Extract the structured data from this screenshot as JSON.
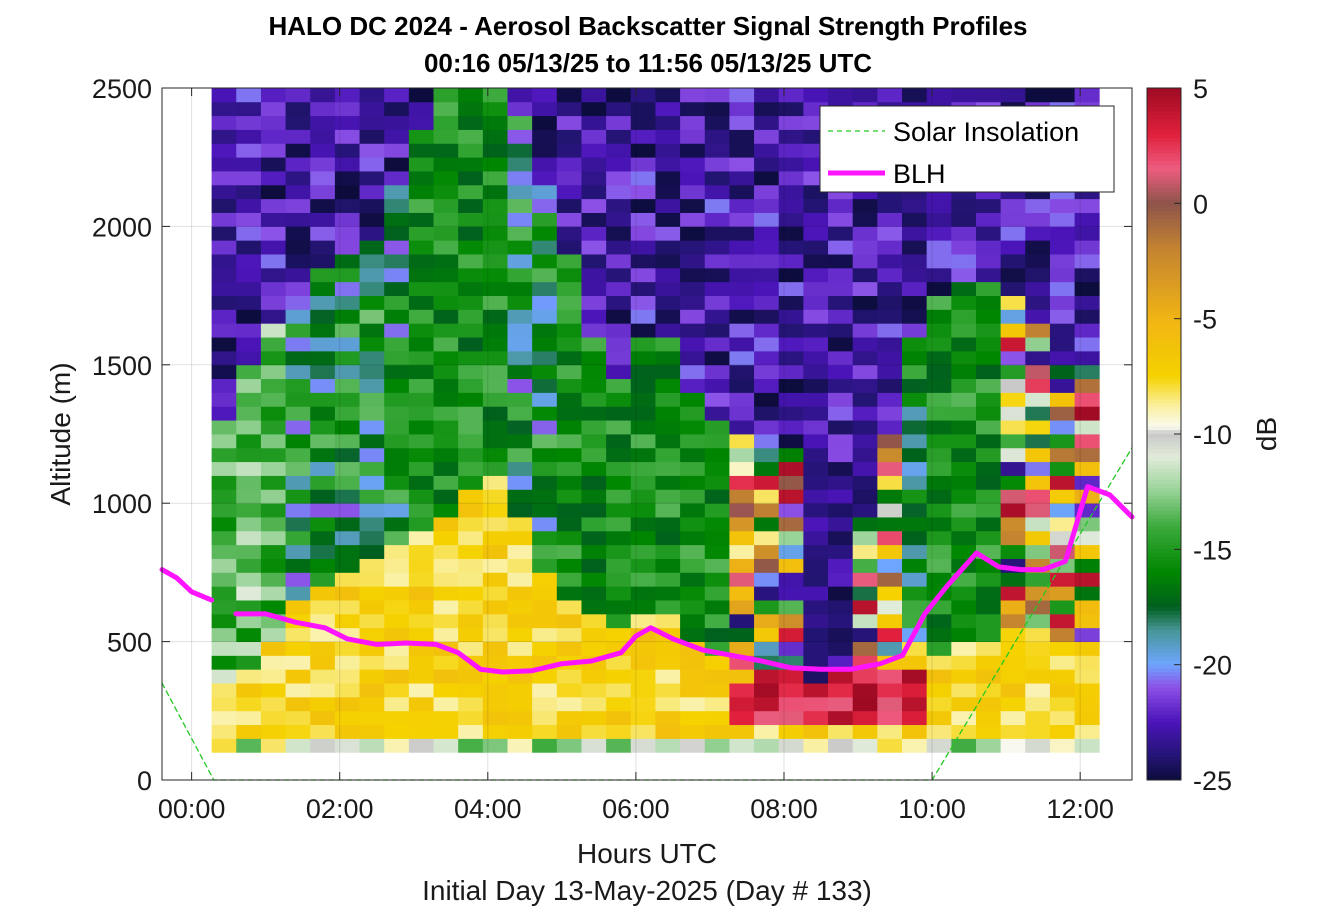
{
  "chart_data": {
    "type": "heatmap",
    "title": "HALO DC 2024 - Aerosol Backscatter Signal Strength Profiles",
    "subtitle": "00:16 05/13/25 to 11:56 05/13/25  UTC",
    "xlabel": "Hours UTC",
    "xlabel2": "Initial Day 13-May-2025 (Day # 133)",
    "ylabel": "Altitude (m)",
    "colorbar_label": "dB",
    "xlim": [
      -0.4,
      12.7
    ],
    "ylim": [
      0,
      2500
    ],
    "clim": [
      -25,
      5
    ],
    "x_ticks": [
      0,
      2,
      4,
      6,
      8,
      10,
      12
    ],
    "x_tick_labels": [
      "00:00",
      "02:00",
      "04:00",
      "06:00",
      "08:00",
      "10:00",
      "12:00"
    ],
    "y_ticks": [
      0,
      500,
      1000,
      1500,
      2000,
      2500
    ],
    "y_tick_labels": [
      "0",
      "500",
      "1000",
      "1500",
      "2000",
      "2500"
    ],
    "colorbar_ticks": [
      5,
      0,
      -5,
      -10,
      -15,
      -20,
      -25
    ],
    "colorbar_tick_labels": [
      "5",
      "0",
      "-5",
      "-10",
      "-15",
      "-20",
      "-25"
    ],
    "grid": true,
    "legend_position": "top-right",
    "heatmap": {
      "x_start": 0.27,
      "x_step": 0.333,
      "columns": 36,
      "y_start": 100,
      "y_step": 50,
      "rows": 48,
      "x_knots": [
        0.27,
        0.8,
        1.5,
        2.5,
        3.3,
        3.6,
        4.2,
        4.6,
        5.2,
        5.7,
        6.3,
        6.9,
        7.4,
        7.9,
        8.3,
        8.7,
        9.2,
        9.7,
        10.2,
        10.6,
        11.2,
        11.8
      ],
      "surface_top_m": [
        300,
        380,
        650,
        800,
        900,
        1000,
        1100,
        800,
        600,
        550,
        600,
        500,
        350,
        400,
        350,
        400,
        400,
        500,
        450,
        500,
        550,
        500
      ],
      "mid_top_m": [
        1200,
        1500,
        1800,
        1950,
        2500,
        2500,
        2500,
        2300,
        1800,
        1400,
        1700,
        1300,
        1250,
        1200,
        1200,
        1100,
        1000,
        1600,
        1800,
        1800,
        1750,
        1500
      ],
      "mid_type": [
        "aerosol",
        "aerosol",
        "blue",
        "blue",
        "green",
        "green",
        "green",
        "blue",
        "green",
        "green",
        "green",
        "green",
        "mixed",
        "mixed",
        "dark",
        "dark",
        "mixed",
        "blue",
        "green",
        "green",
        "mixed",
        "mixed"
      ]
    },
    "series": [
      {
        "name": "Solar Insolation",
        "style": "dashed",
        "color": "#22c922",
        "x": [
          -0.4,
          0.3,
          10.0,
          12.7
        ],
        "y": [
          350,
          0,
          0,
          1200
        ]
      },
      {
        "name": "BLH",
        "style": "solid",
        "color": "#ff14ff",
        "segments": [
          {
            "x": [
              -0.4,
              -0.2,
              0.0,
              0.27
            ],
            "y": [
              760,
              730,
              680,
              650
            ]
          },
          {
            "x": [
              0.6,
              1.0,
              1.4,
              1.8,
              2.1,
              2.5,
              2.9,
              3.3,
              3.6,
              3.9,
              4.2,
              4.6,
              5.0,
              5.4,
              5.8,
              6.0,
              6.2,
              6.5,
              6.9,
              7.3,
              7.7,
              8.1,
              8.5,
              8.9,
              9.3,
              9.6,
              9.9,
              10.2,
              10.6,
              10.9,
              11.2,
              11.5,
              11.8,
              12.1,
              12.4,
              12.7
            ],
            "y": [
              600,
              600,
              570,
              550,
              510,
              490,
              495,
              490,
              460,
              400,
              390,
              395,
              420,
              430,
              460,
              520,
              550,
              510,
              470,
              450,
              430,
              405,
              400,
              400,
              420,
              450,
              600,
              700,
              820,
              770,
              760,
              760,
              790,
              1060,
              1030,
              950
            ]
          }
        ]
      }
    ],
    "legend": [
      "Solar Insolation",
      "BLH"
    ]
  }
}
